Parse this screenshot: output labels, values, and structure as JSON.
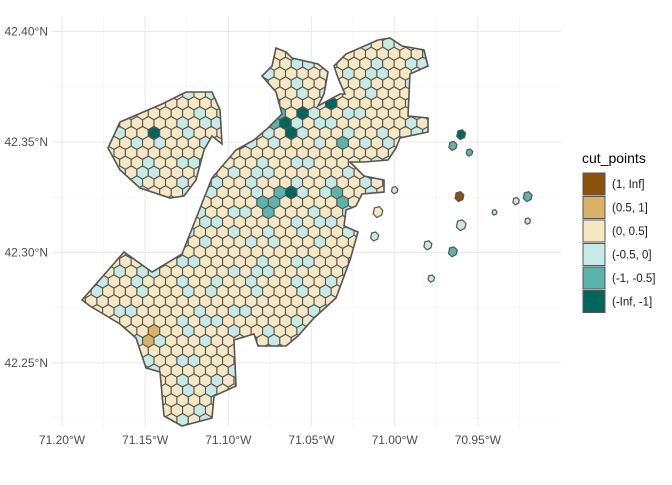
{
  "chart_data": {
    "type": "map",
    "x_axis": {
      "ticks": [
        "71.20°W",
        "71.15°W",
        "71.10°W",
        "71.05°W",
        "71.00°W",
        "70.95°W"
      ],
      "tick_values": [
        -71.2,
        -71.15,
        -71.1,
        -71.05,
        -71.0,
        -70.95
      ],
      "range": [
        -71.206,
        -70.9
      ]
    },
    "y_axis": {
      "ticks": [
        "42.25°N",
        "42.30°N",
        "42.35°N",
        "42.40°N"
      ],
      "tick_values": [
        42.25,
        42.3,
        42.35,
        42.4
      ],
      "range": [
        42.221,
        42.407
      ]
    },
    "grid": true,
    "legend": {
      "title": "cut_points",
      "position": "right",
      "items": [
        {
          "label": "(1, Inf]",
          "color": "#8c510a"
        },
        {
          "label": "(0.5, 1]",
          "color": "#d8b365"
        },
        {
          "label": "(0, 0.5]",
          "color": "#f6e8c3"
        },
        {
          "label": "(-0.5, 0]",
          "color": "#c7eae5"
        },
        {
          "label": "(-1, -0.5]",
          "color": "#5ab4ac"
        },
        {
          "label": "(-Inf, -1]",
          "color": "#01665e"
        }
      ]
    },
    "highlighted_cells": [
      {
        "lon": -71.145,
        "lat": 42.354,
        "class": "(-Inf, -1]"
      },
      {
        "lon": -71.058,
        "lat": 42.363,
        "class": "(-Inf, -1]"
      },
      {
        "lon": -71.064,
        "lat": 42.356,
        "class": "(-Inf, -1]"
      },
      {
        "lon": -71.04,
        "lat": 42.367,
        "class": "(-Inf, -1]"
      },
      {
        "lon": -71.064,
        "lat": 42.328,
        "class": "(-Inf, -1]"
      },
      {
        "lon": -71.145,
        "lat": 42.262,
        "class": "(0.5, 1]"
      },
      {
        "lon": -71.034,
        "lat": 42.349,
        "class": "(-1, -0.5]"
      },
      {
        "lon": -71.034,
        "lat": 42.325,
        "class": "(-1, -0.5]"
      },
      {
        "lon": -71.07,
        "lat": 42.325,
        "class": "(-1, -0.5]"
      },
      {
        "lon": -71.076,
        "lat": 42.321,
        "class": "(-1, -0.5]"
      },
      {
        "lon": -71.07,
        "lat": 42.361,
        "class": "(-1, -0.5]"
      }
    ],
    "islands": [
      {
        "lon": -70.96,
        "lat": 42.353,
        "class": "(-Inf, -1]"
      },
      {
        "lon": -70.965,
        "lat": 42.3,
        "class": "(-1, -0.5]"
      },
      {
        "lon": -70.92,
        "lat": 42.325,
        "class": "(-1, -0.5]"
      },
      {
        "lon": -70.961,
        "lat": 42.325,
        "class": "(1, Inf]"
      }
    ]
  }
}
